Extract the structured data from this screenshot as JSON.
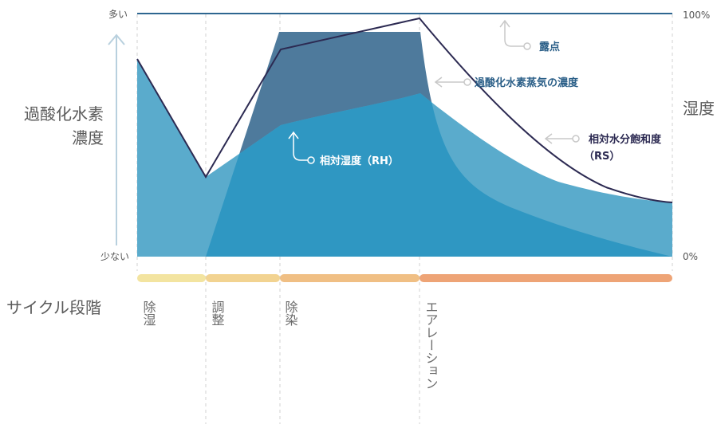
{
  "left_axis": {
    "top_label": "多い",
    "bottom_label": "少ない",
    "title_line1": "過酸化水素",
    "title_line2": "濃度"
  },
  "right_axis": {
    "top_label": "100%",
    "bottom_label": "0%",
    "title": "湿度"
  },
  "cycle": {
    "title": "サイクル段階",
    "phases": [
      {
        "label": "除湿",
        "color": "#f3e4a0"
      },
      {
        "label": "調整",
        "color": "#f2d391"
      },
      {
        "label": "除染",
        "color": "#f0bf84"
      },
      {
        "label": "エアレーション",
        "color": "#eea476"
      }
    ]
  },
  "annotations": {
    "dew_point": "露点",
    "h2o2_vapor": "過酸化水素蒸気の濃度",
    "relative_humidity": "相対湿度（RH）",
    "relative_saturation_line1": "相対水分飽和度",
    "relative_saturation_line2": "（RS）"
  },
  "colors": {
    "dew_point_line": "#2e6690",
    "h2o2_area": "#4e7a9c",
    "rh_area": "#5aabcc",
    "overlap_area": "#2f97c2",
    "rs_line": "#2c2a52",
    "guide_line": "#c8c8c8",
    "phase_divider": "#d0d0d0"
  }
}
